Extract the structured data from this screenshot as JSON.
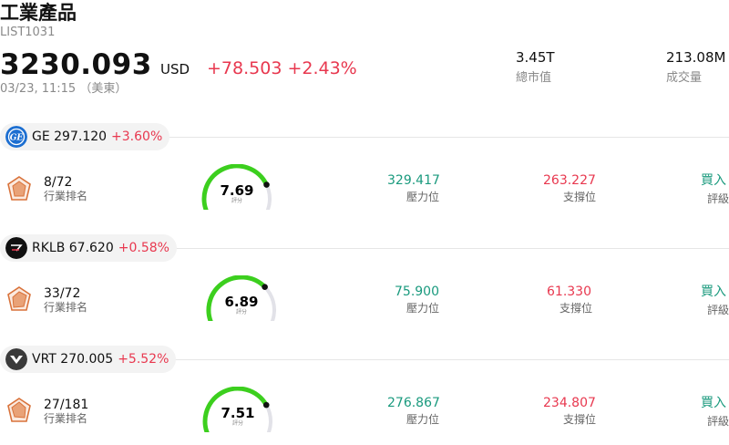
{
  "header": {
    "title": "工業產品",
    "code": "LIST1031",
    "price": "3230.093",
    "currency": "USD",
    "change": "+78.503 +2.43%",
    "timestamp": "03/23, 11:15 （美東）",
    "market_cap_value": "3.45T",
    "market_cap_label": "總市值",
    "volume_value": "213.08M",
    "volume_label": "成交量"
  },
  "colors": {
    "up_red": "#e8384f",
    "resistance_green": "#1a9a7e",
    "gauge_green": "#3ccf1e",
    "gauge_track": "#e2e2e8"
  },
  "stocks": [
    {
      "ticker": "GE 297.120",
      "change": "+3.60%",
      "logo_icon": "ge-logo-icon",
      "rank": "8/72",
      "rank_label": "行業排名",
      "score": "7.69",
      "score_fraction": 0.769,
      "score_label": "評分",
      "resistance": "329.417",
      "resistance_label": "壓力位",
      "support": "263.227",
      "support_label": "支撐位",
      "rating": "買入",
      "rating_label": "評級"
    },
    {
      "ticker": "RKLB 67.620",
      "change": "+0.58%",
      "logo_icon": "rklb-logo-icon",
      "rank": "33/72",
      "rank_label": "行業排名",
      "score": "6.89",
      "score_fraction": 0.689,
      "score_label": "評分",
      "resistance": "75.900",
      "resistance_label": "壓力位",
      "support": "61.330",
      "support_label": "支撐位",
      "rating": "買入",
      "rating_label": "評級"
    },
    {
      "ticker": "VRT 270.005",
      "change": "+5.52%",
      "logo_icon": "vrt-logo-icon",
      "rank": "27/181",
      "rank_label": "行業排名",
      "score": "7.51",
      "score_fraction": 0.751,
      "score_label": "評分",
      "resistance": "276.867",
      "resistance_label": "壓力位",
      "support": "234.807",
      "support_label": "支撐位",
      "rating": "買入",
      "rating_label": "評級"
    }
  ]
}
